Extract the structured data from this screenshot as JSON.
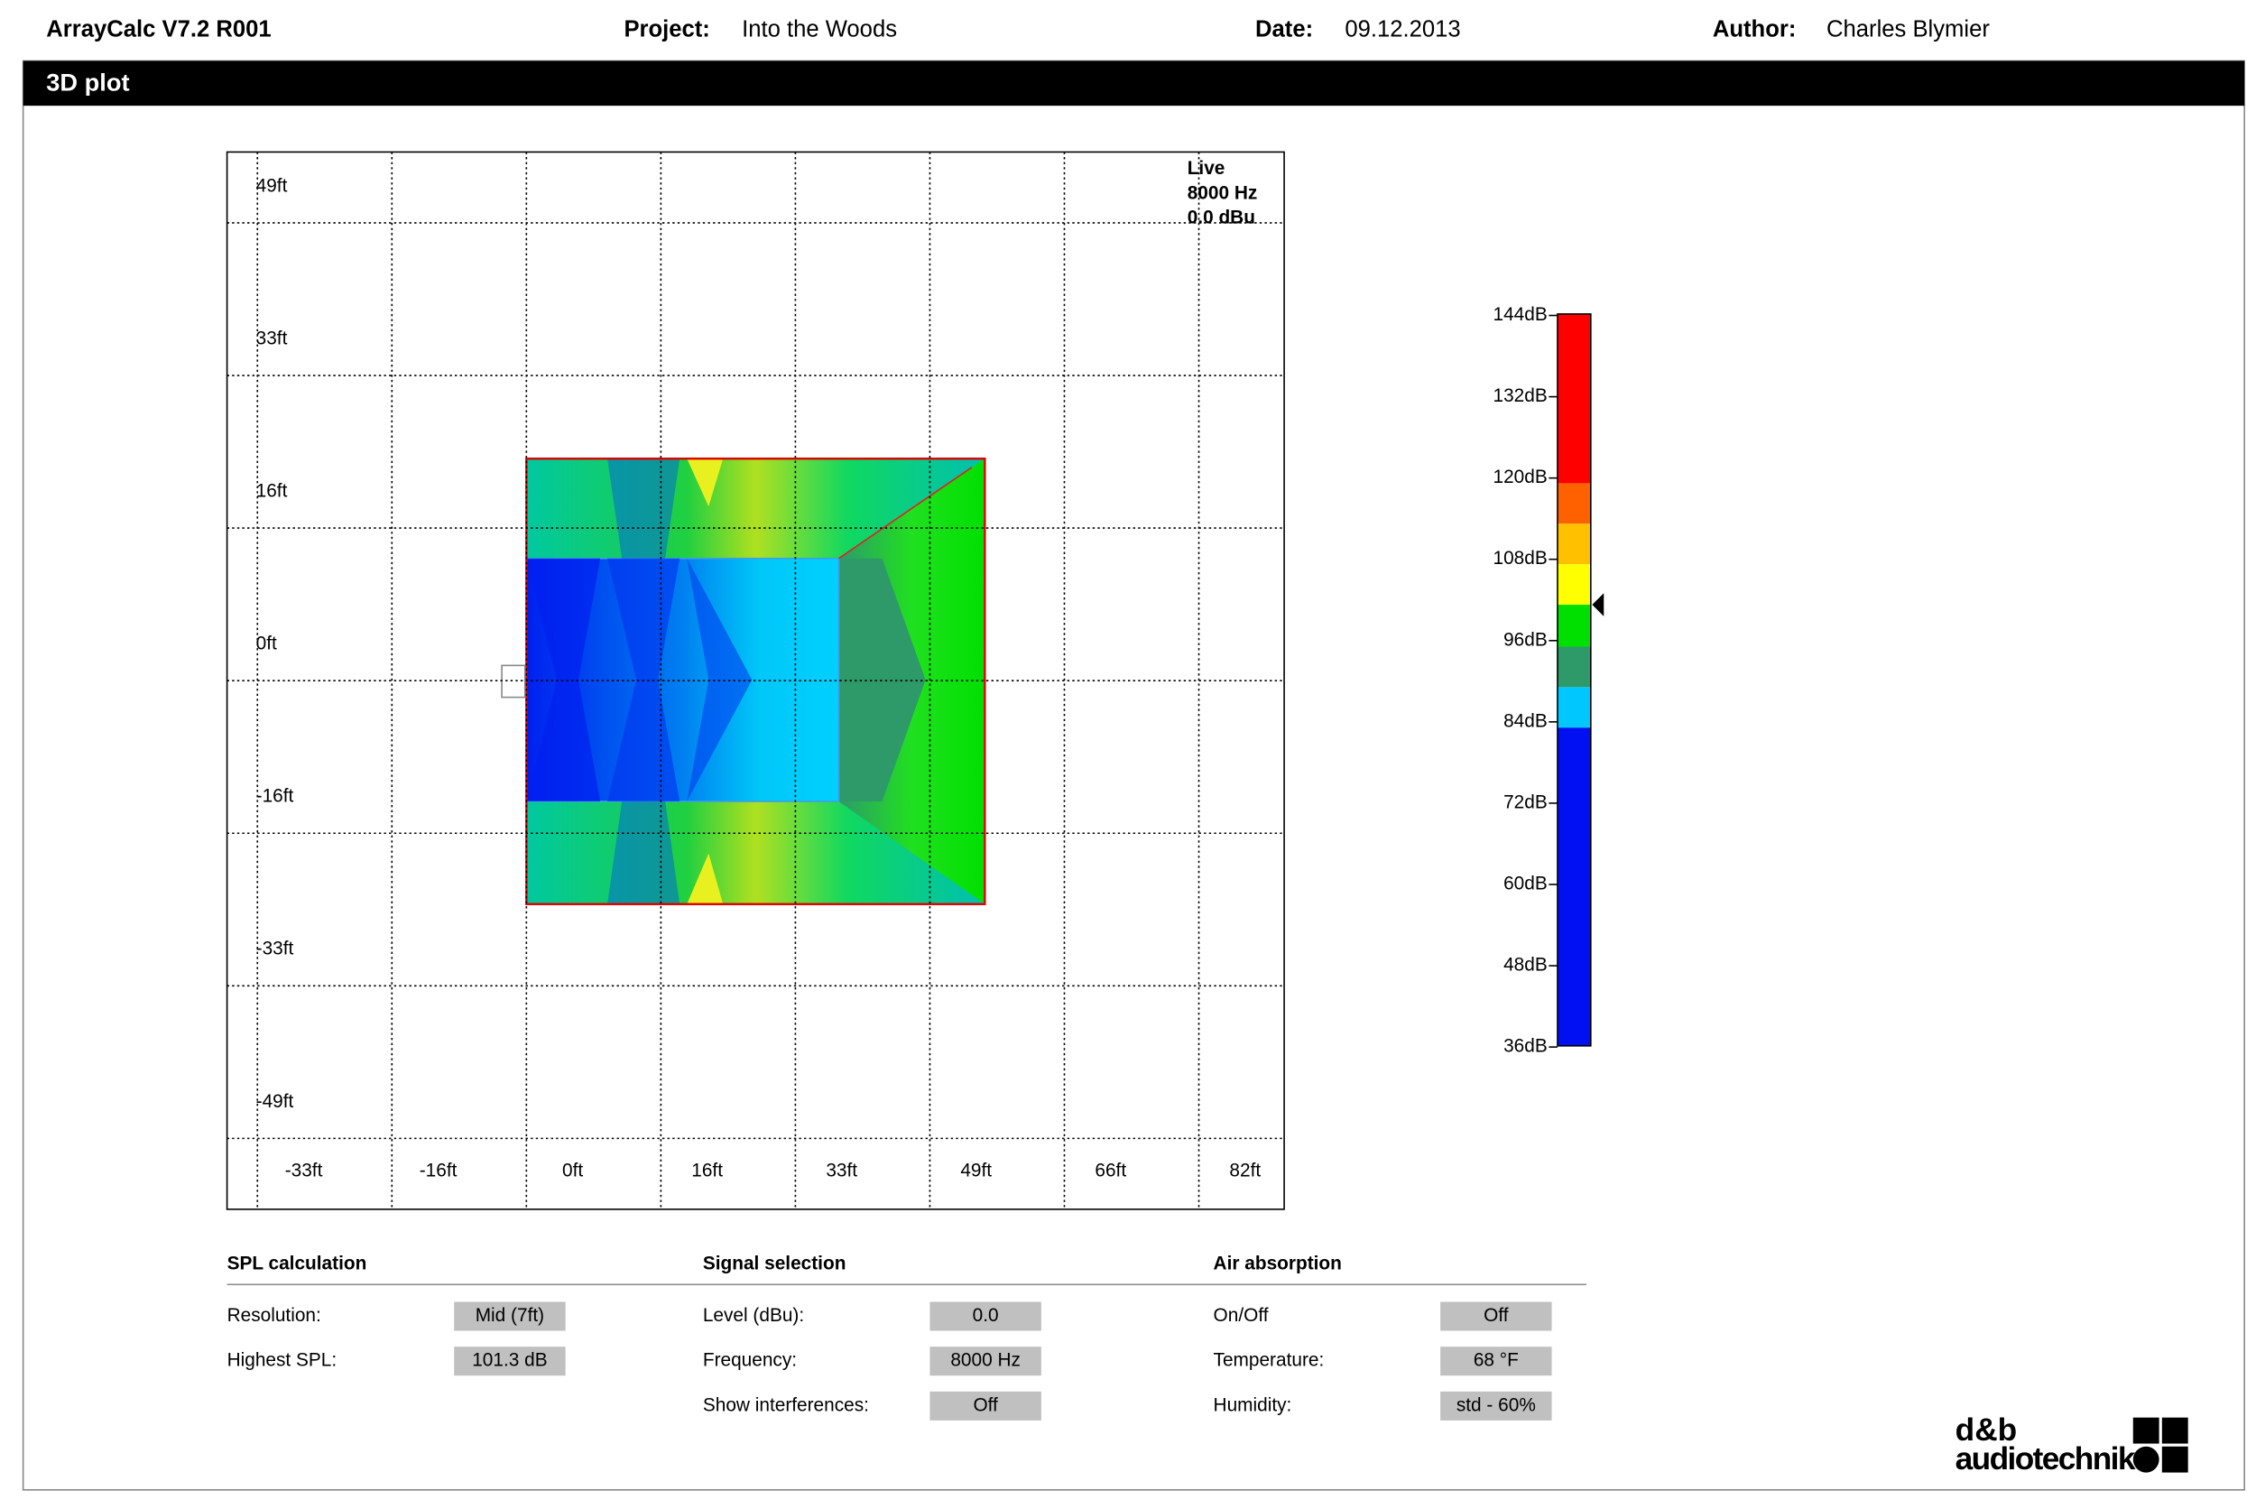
{
  "header": {
    "app": "ArrayCalc V7.2 R001",
    "project_label": "Project:",
    "project": "Into the Woods",
    "date_label": "Date:",
    "date": "09.12.2013",
    "author_label": "Author:",
    "author": "Charles Blymier"
  },
  "section_title": "3D plot",
  "plot": {
    "y_labels": [
      "49ft",
      "33ft",
      "16ft",
      "0ft",
      "-16ft",
      "-33ft",
      "-49ft"
    ],
    "x_labels": [
      "-33ft",
      "-16ft",
      "0ft",
      "16ft",
      "33ft",
      "49ft",
      "66ft",
      "82ft"
    ],
    "info": [
      "Live",
      "8000 Hz",
      "0.0 dBu"
    ]
  },
  "scale": {
    "labels": [
      "144dB",
      "132dB",
      "120dB",
      "108dB",
      "96dB",
      "84dB",
      "72dB",
      "60dB",
      "48dB",
      "36dB"
    ]
  },
  "settings": [
    {
      "title": "SPL calculation",
      "rows": [
        [
          "Resolution:",
          "Mid (7ft)"
        ],
        [
          "Highest SPL:",
          "101.3 dB"
        ]
      ]
    },
    {
      "title": "Signal selection",
      "rows": [
        [
          "Level (dBu):",
          "0.0"
        ],
        [
          "Frequency:",
          "8000 Hz"
        ],
        [
          "Show interferences:",
          "Off"
        ]
      ]
    },
    {
      "title": "Air absorption",
      "rows": [
        [
          "On/Off",
          "Off"
        ],
        [
          "Temperature:",
          "68 °F"
        ],
        [
          "Humidity:",
          "std - 60%"
        ]
      ]
    }
  ],
  "logo": [
    "d&b",
    "audiotechnik"
  ]
}
